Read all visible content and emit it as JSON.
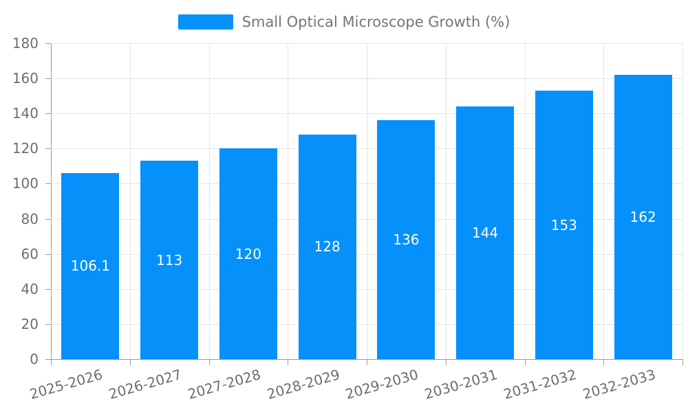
{
  "legend": {
    "label": "Small Optical Microscope Growth (%)"
  },
  "colors": {
    "bar": "#0590FA",
    "axis": "#999999",
    "grid": "#e4e4e4",
    "tick_text": "#6e6e6e",
    "legend_text": "#757575",
    "bar_label_text": "#ffffff",
    "background": "#ffffff"
  },
  "chart_data": {
    "type": "bar",
    "title": "Small Optical Microscope Growth (%)",
    "categories": [
      "2025-2026",
      "2026-2027",
      "2027-2028",
      "2028-2029",
      "2029-2030",
      "2030-2031",
      "2031-2032",
      "2032-2033"
    ],
    "series": [
      {
        "name": "Small Optical Microscope Growth (%)",
        "values": [
          106.1,
          113,
          120,
          128,
          136,
          144,
          153,
          162
        ],
        "value_labels": [
          "106.1",
          "113",
          "120",
          "128",
          "136",
          "144",
          "153",
          "162"
        ],
        "color": "#0590FA"
      }
    ],
    "xlabel": "",
    "ylabel": "",
    "ylim": [
      0,
      180
    ],
    "yticks": [
      0,
      20,
      40,
      60,
      80,
      100,
      120,
      140,
      160,
      180
    ],
    "grid": "on",
    "legend_position": "top-center",
    "bar_label_position": "inside-middle",
    "x_tick_rotation_deg": 16
  }
}
